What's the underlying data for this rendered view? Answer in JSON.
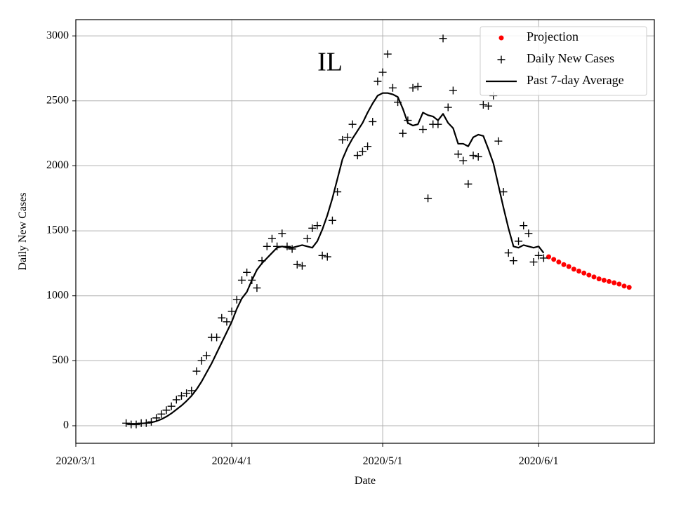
{
  "chart_data": {
    "type": "scatter",
    "title": "IL",
    "xlabel": "Date",
    "ylabel": "Daily New Cases",
    "x": [
      "2020-03-11",
      "2020-03-12",
      "2020-03-13",
      "2020-03-14",
      "2020-03-15",
      "2020-03-16",
      "2020-03-17",
      "2020-03-18",
      "2020-03-19",
      "2020-03-20",
      "2020-03-21",
      "2020-03-22",
      "2020-03-23",
      "2020-03-24",
      "2020-03-25",
      "2020-03-26",
      "2020-03-27",
      "2020-03-28",
      "2020-03-29",
      "2020-03-30",
      "2020-03-31",
      "2020-04-01",
      "2020-04-02",
      "2020-04-03",
      "2020-04-04",
      "2020-04-05",
      "2020-04-06",
      "2020-04-07",
      "2020-04-08",
      "2020-04-09",
      "2020-04-10",
      "2020-04-11",
      "2020-04-12",
      "2020-04-13",
      "2020-04-14",
      "2020-04-15",
      "2020-04-16",
      "2020-04-17",
      "2020-04-18",
      "2020-04-19",
      "2020-04-20",
      "2020-04-21",
      "2020-04-22",
      "2020-04-23",
      "2020-04-24",
      "2020-04-25",
      "2020-04-26",
      "2020-04-27",
      "2020-04-28",
      "2020-04-29",
      "2020-04-30",
      "2020-05-01",
      "2020-05-02",
      "2020-05-03",
      "2020-05-04",
      "2020-05-05",
      "2020-05-06",
      "2020-05-07",
      "2020-05-08",
      "2020-05-09",
      "2020-05-10",
      "2020-05-11",
      "2020-05-12",
      "2020-05-13",
      "2020-05-14",
      "2020-05-15",
      "2020-05-16",
      "2020-05-17",
      "2020-05-18",
      "2020-05-19",
      "2020-05-20",
      "2020-05-21",
      "2020-05-22",
      "2020-05-23",
      "2020-05-24",
      "2020-05-25",
      "2020-05-26",
      "2020-05-27",
      "2020-05-28",
      "2020-05-29",
      "2020-05-30",
      "2020-05-31",
      "2020-06-01",
      "2020-06-02"
    ],
    "series": [
      {
        "name": "Projection",
        "marker": "dot",
        "color": "#ff0000",
        "x": [
          "2020-06-03",
          "2020-06-04",
          "2020-06-05",
          "2020-06-06",
          "2020-06-07",
          "2020-06-08",
          "2020-06-09",
          "2020-06-10",
          "2020-06-11",
          "2020-06-12",
          "2020-06-13",
          "2020-06-14",
          "2020-06-15",
          "2020-06-16",
          "2020-06-17",
          "2020-06-18",
          "2020-06-19"
        ],
        "values": [
          1300,
          1280,
          1260,
          1240,
          1225,
          1205,
          1190,
          1175,
          1160,
          1145,
          1130,
          1120,
          1110,
          1100,
          1090,
          1075,
          1065
        ]
      },
      {
        "name": "Daily New Cases",
        "marker": "plus",
        "color": "#000000",
        "values": [
          20,
          10,
          10,
          20,
          20,
          30,
          60,
          90,
          120,
          150,
          200,
          230,
          250,
          270,
          420,
          500,
          540,
          680,
          680,
          830,
          800,
          880,
          970,
          1120,
          1180,
          1120,
          1060,
          1270,
          1380,
          1440,
          1380,
          1480,
          1380,
          1360,
          1240,
          1230,
          1440,
          1520,
          1540,
          1310,
          1300,
          1580,
          1800,
          2200,
          2220,
          2320,
          2080,
          2110,
          2150,
          2340,
          2650,
          2720,
          2860,
          2600,
          2490,
          2250,
          2350,
          2600,
          2610,
          2280,
          1750,
          2320,
          2320,
          2980,
          2450,
          2580,
          2090,
          2040,
          1860,
          2080,
          2070,
          2470,
          2460,
          2540,
          2190,
          1800,
          1330,
          1270,
          1420,
          1540,
          1480,
          1260,
          1310,
          1290
        ]
      },
      {
        "name": "Past 7-day Average",
        "marker": "line",
        "color": "#000000",
        "values": [
          15,
          15,
          15,
          17,
          20,
          25,
          35,
          50,
          70,
          95,
          125,
          155,
          190,
          230,
          280,
          340,
          410,
          480,
          560,
          640,
          720,
          800,
          900,
          980,
          1030,
          1120,
          1200,
          1250,
          1290,
          1330,
          1370,
          1380,
          1370,
          1370,
          1380,
          1390,
          1380,
          1370,
          1420,
          1510,
          1620,
          1750,
          1900,
          2050,
          2140,
          2210,
          2270,
          2330,
          2410,
          2480,
          2540,
          2560,
          2560,
          2550,
          2530,
          2440,
          2330,
          2310,
          2320,
          2410,
          2390,
          2380,
          2350,
          2400,
          2330,
          2290,
          2170,
          2170,
          2150,
          2220,
          2240,
          2230,
          2130,
          2020,
          1850,
          1680,
          1520,
          1380,
          1370,
          1390,
          1380,
          1370,
          1380,
          1330
        ]
      }
    ],
    "xlim": [
      "2020-03-01",
      "2020-06-24"
    ],
    "xticks": [
      {
        "value": "2020-03-01",
        "label": "2020/3/1"
      },
      {
        "value": "2020-04-01",
        "label": "2020/4/1"
      },
      {
        "value": "2020-05-01",
        "label": "2020/5/1"
      },
      {
        "value": "2020-06-01",
        "label": "2020/6/1"
      }
    ],
    "ylim": [
      -135,
      3125
    ],
    "yticks": [
      0,
      500,
      1000,
      1500,
      2000,
      2500,
      3000
    ],
    "grid": true,
    "legend": "upper right"
  }
}
